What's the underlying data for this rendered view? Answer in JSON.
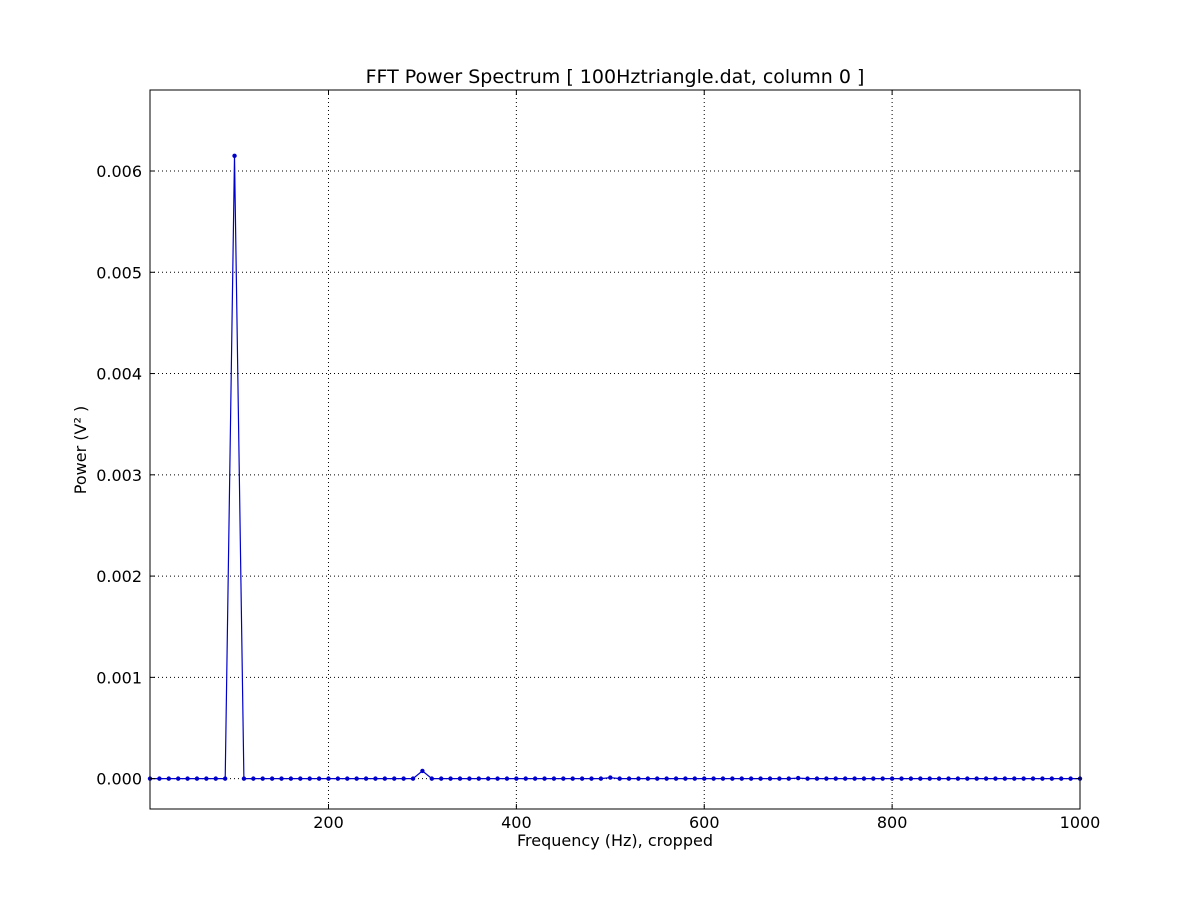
{
  "chart_data": {
    "type": "line",
    "title": "FFT Power Spectrum  [ 100Hztriangle.dat, column 0 ]",
    "xlabel": "Frequency (Hz),  cropped",
    "ylabel": "Power (V² )",
    "xlim": [
      10,
      1000
    ],
    "ylim": [
      -0.0003,
      0.0068
    ],
    "xticks": [
      200,
      400,
      600,
      800,
      1000
    ],
    "xtick_labels": [
      "200",
      "400",
      "600",
      "800",
      "1000"
    ],
    "yticks": [
      0.0,
      0.001,
      0.002,
      0.003,
      0.004,
      0.005,
      0.006
    ],
    "ytick_labels": [
      "0.000",
      "0.001",
      "0.002",
      "0.003",
      "0.004",
      "0.005",
      "0.006"
    ],
    "grid": true,
    "line_color": "#0000cc",
    "series": [
      {
        "x": [
          10,
          20,
          30,
          40,
          50,
          60,
          70,
          80,
          90,
          100,
          110,
          120,
          130,
          140,
          150,
          160,
          170,
          180,
          190,
          200,
          210,
          220,
          230,
          240,
          250,
          260,
          270,
          280,
          290,
          300,
          310,
          320,
          330,
          340,
          350,
          360,
          370,
          380,
          390,
          400,
          410,
          420,
          430,
          440,
          450,
          460,
          470,
          480,
          490,
          500,
          510,
          520,
          530,
          540,
          550,
          560,
          570,
          580,
          590,
          600,
          610,
          620,
          630,
          640,
          650,
          660,
          670,
          680,
          690,
          700,
          710,
          720,
          730,
          740,
          750,
          760,
          770,
          780,
          790,
          800,
          810,
          820,
          830,
          840,
          850,
          860,
          870,
          880,
          890,
          900,
          910,
          920,
          930,
          940,
          950,
          960,
          970,
          980,
          990,
          1000
        ],
        "y": [
          0,
          0,
          0,
          0,
          0,
          0,
          0,
          0,
          0,
          0.00615,
          0,
          0,
          0,
          0,
          0,
          0,
          0,
          0,
          0,
          0,
          0,
          0,
          0,
          0,
          0,
          0,
          0,
          0,
          0,
          7.6e-05,
          0,
          0,
          0,
          0,
          0,
          0,
          0,
          0,
          0,
          0,
          0,
          0,
          0,
          0,
          0,
          0,
          0,
          0,
          0,
          1e-05,
          0,
          0,
          0,
          0,
          0,
          0,
          0,
          0,
          0,
          0,
          0,
          0,
          0,
          0,
          0,
          0,
          0,
          0,
          0,
          5e-06,
          0,
          0,
          0,
          0,
          0,
          0,
          0,
          0,
          0,
          0,
          0,
          0,
          0,
          0,
          0,
          0,
          0,
          0,
          0,
          0,
          0,
          0,
          0,
          0,
          0,
          0,
          0,
          0,
          0,
          0
        ]
      }
    ]
  }
}
